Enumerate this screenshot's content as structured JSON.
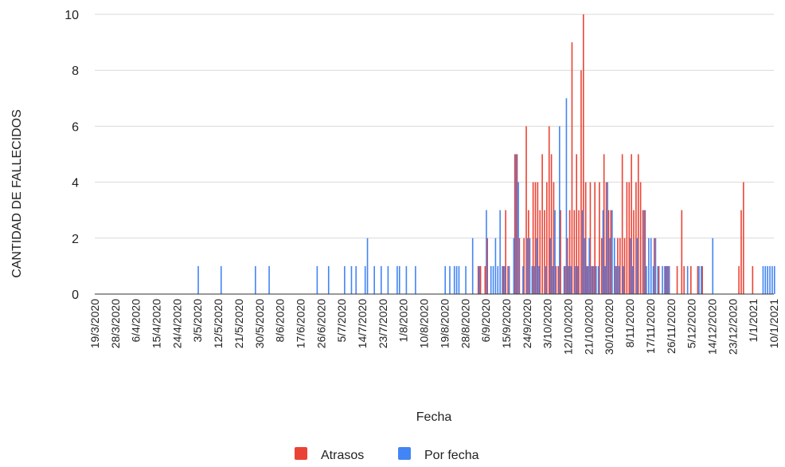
{
  "chart_data": {
    "type": "bar",
    "title": "",
    "xlabel": "Fecha",
    "ylabel": "CANTIDAD DE FALLECIDOS",
    "ylim": [
      0,
      10
    ],
    "yticks": [
      0,
      2,
      4,
      6,
      8,
      10
    ],
    "grid": true,
    "legend_position": "bottom",
    "x_range": [
      "19/3/2020",
      "10/1/2021"
    ],
    "tick_labels": [
      "19/3/2020",
      "28/3/2020",
      "6/4/2020",
      "15/4/2020",
      "24/4/2020",
      "3/5/2020",
      "12/5/2020",
      "21/5/2020",
      "30/5/2020",
      "8/6/2020",
      "17/6/2020",
      "26/6/2020",
      "5/7/2020",
      "14/7/2020",
      "23/7/2020",
      "1/8/2020",
      "10/8/2020",
      "19/8/2020",
      "28/8/2020",
      "6/9/2020",
      "15/9/2020",
      "24/9/2020",
      "3/10/2020",
      "12/10/2020",
      "21/10/2020",
      "30/10/2020",
      "8/11/2020",
      "17/11/2020",
      "26/11/2020",
      "5/12/2020",
      "14/12/2020",
      "23/12/2020",
      "1/1/2021",
      "10/1/2021"
    ],
    "series": [
      {
        "name": "Atrasos",
        "color": "#ea4335",
        "points": [
          {
            "x": "3/9/2020",
            "y": 1
          },
          {
            "x": "4/9/2020",
            "y": 1
          },
          {
            "x": "6/9/2020",
            "y": 1
          },
          {
            "x": "7/9/2020",
            "y": 2
          },
          {
            "x": "14/9/2020",
            "y": 1
          },
          {
            "x": "15/9/2020",
            "y": 3
          },
          {
            "x": "16/9/2020",
            "y": 1
          },
          {
            "x": "19/9/2020",
            "y": 5
          },
          {
            "x": "20/9/2020",
            "y": 5
          },
          {
            "x": "21/9/2020",
            "y": 2
          },
          {
            "x": "23/9/2020",
            "y": 2
          },
          {
            "x": "24/9/2020",
            "y": 6
          },
          {
            "x": "25/9/2020",
            "y": 3
          },
          {
            "x": "27/9/2020",
            "y": 4
          },
          {
            "x": "28/9/2020",
            "y": 4
          },
          {
            "x": "29/9/2020",
            "y": 4
          },
          {
            "x": "30/9/2020",
            "y": 3
          },
          {
            "x": "1/10/2020",
            "y": 5
          },
          {
            "x": "2/10/2020",
            "y": 3
          },
          {
            "x": "3/10/2020",
            "y": 4
          },
          {
            "x": "4/10/2020",
            "y": 6
          },
          {
            "x": "5/10/2020",
            "y": 5
          },
          {
            "x": "6/10/2020",
            "y": 4
          },
          {
            "x": "7/10/2020",
            "y": 1
          },
          {
            "x": "8/10/2020",
            "y": 1
          },
          {
            "x": "9/10/2020",
            "y": 3
          },
          {
            "x": "11/10/2020",
            "y": 1
          },
          {
            "x": "12/10/2020",
            "y": 2
          },
          {
            "x": "13/10/2020",
            "y": 3
          },
          {
            "x": "14/10/2020",
            "y": 9
          },
          {
            "x": "15/10/2020",
            "y": 3
          },
          {
            "x": "16/10/2020",
            "y": 5
          },
          {
            "x": "17/10/2020",
            "y": 3
          },
          {
            "x": "18/10/2020",
            "y": 8
          },
          {
            "x": "19/10/2020",
            "y": 10
          },
          {
            "x": "20/10/2020",
            "y": 4
          },
          {
            "x": "21/10/2020",
            "y": 1
          },
          {
            "x": "22/10/2020",
            "y": 4
          },
          {
            "x": "23/10/2020",
            "y": 1
          },
          {
            "x": "24/10/2020",
            "y": 4
          },
          {
            "x": "26/10/2020",
            "y": 4
          },
          {
            "x": "27/10/2020",
            "y": 2
          },
          {
            "x": "28/10/2020",
            "y": 5
          },
          {
            "x": "29/10/2020",
            "y": 4
          },
          {
            "x": "30/10/2020",
            "y": 3
          },
          {
            "x": "31/10/2020",
            "y": 3
          },
          {
            "x": "2/11/2020",
            "y": 1
          },
          {
            "x": "3/11/2020",
            "y": 2
          },
          {
            "x": "4/11/2020",
            "y": 2
          },
          {
            "x": "5/11/2020",
            "y": 5
          },
          {
            "x": "6/11/2020",
            "y": 2
          },
          {
            "x": "7/11/2020",
            "y": 4
          },
          {
            "x": "8/11/2020",
            "y": 4
          },
          {
            "x": "9/11/2020",
            "y": 5
          },
          {
            "x": "10/11/2020",
            "y": 3
          },
          {
            "x": "11/11/2020",
            "y": 4
          },
          {
            "x": "12/11/2020",
            "y": 5
          },
          {
            "x": "13/11/2020",
            "y": 4
          },
          {
            "x": "14/11/2020",
            "y": 3
          },
          {
            "x": "15/11/2020",
            "y": 3
          },
          {
            "x": "19/11/2020",
            "y": 2
          },
          {
            "x": "21/11/2020",
            "y": 1
          },
          {
            "x": "24/11/2020",
            "y": 1
          },
          {
            "x": "25/11/2020",
            "y": 1
          },
          {
            "x": "29/11/2020",
            "y": 1
          },
          {
            "x": "1/12/2020",
            "y": 3
          },
          {
            "x": "2/12/2020",
            "y": 1
          },
          {
            "x": "5/12/2020",
            "y": 1
          },
          {
            "x": "8/12/2020",
            "y": 1
          },
          {
            "x": "10/12/2020",
            "y": 1
          },
          {
            "x": "26/12/2020",
            "y": 1
          },
          {
            "x": "27/12/2020",
            "y": 3
          },
          {
            "x": "28/12/2020",
            "y": 4
          },
          {
            "x": "1/1/2021",
            "y": 1
          }
        ]
      },
      {
        "name": "Por fecha",
        "color": "#4285f4",
        "points": [
          {
            "x": "3/5/2020",
            "y": 1
          },
          {
            "x": "13/5/2020",
            "y": 1
          },
          {
            "x": "28/5/2020",
            "y": 1
          },
          {
            "x": "3/6/2020",
            "y": 1
          },
          {
            "x": "24/6/2020",
            "y": 1
          },
          {
            "x": "29/6/2020",
            "y": 1
          },
          {
            "x": "6/7/2020",
            "y": 1
          },
          {
            "x": "9/7/2020",
            "y": 1
          },
          {
            "x": "11/7/2020",
            "y": 1
          },
          {
            "x": "15/7/2020",
            "y": 1
          },
          {
            "x": "16/7/2020",
            "y": 2
          },
          {
            "x": "19/7/2020",
            "y": 1
          },
          {
            "x": "22/7/2020",
            "y": 1
          },
          {
            "x": "25/7/2020",
            "y": 1
          },
          {
            "x": "29/7/2020",
            "y": 1
          },
          {
            "x": "30/7/2020",
            "y": 1
          },
          {
            "x": "2/8/2020",
            "y": 1
          },
          {
            "x": "6/8/2020",
            "y": 1
          },
          {
            "x": "19/8/2020",
            "y": 1
          },
          {
            "x": "21/8/2020",
            "y": 1
          },
          {
            "x": "23/8/2020",
            "y": 1
          },
          {
            "x": "24/8/2020",
            "y": 1
          },
          {
            "x": "25/8/2020",
            "y": 1
          },
          {
            "x": "28/8/2020",
            "y": 1
          },
          {
            "x": "31/8/2020",
            "y": 2
          },
          {
            "x": "3/9/2020",
            "y": 1
          },
          {
            "x": "6/9/2020",
            "y": 3
          },
          {
            "x": "8/9/2020",
            "y": 1
          },
          {
            "x": "9/9/2020",
            "y": 1
          },
          {
            "x": "10/9/2020",
            "y": 2
          },
          {
            "x": "11/9/2020",
            "y": 1
          },
          {
            "x": "12/9/2020",
            "y": 3
          },
          {
            "x": "13/9/2020",
            "y": 1
          },
          {
            "x": "14/9/2020",
            "y": 1
          },
          {
            "x": "16/9/2020",
            "y": 1
          },
          {
            "x": "18/9/2020",
            "y": 2
          },
          {
            "x": "19/9/2020",
            "y": 5
          },
          {
            "x": "20/9/2020",
            "y": 4
          },
          {
            "x": "22/9/2020",
            "y": 1
          },
          {
            "x": "24/9/2020",
            "y": 2
          },
          {
            "x": "25/9/2020",
            "y": 2
          },
          {
            "x": "26/9/2020",
            "y": 1
          },
          {
            "x": "27/9/2020",
            "y": 1
          },
          {
            "x": "28/9/2020",
            "y": 2
          },
          {
            "x": "29/9/2020",
            "y": 1
          },
          {
            "x": "2/10/2020",
            "y": 1
          },
          {
            "x": "4/10/2020",
            "y": 2
          },
          {
            "x": "5/10/2020",
            "y": 1
          },
          {
            "x": "6/10/2020",
            "y": 3
          },
          {
            "x": "8/10/2020",
            "y": 6
          },
          {
            "x": "10/10/2020",
            "y": 1
          },
          {
            "x": "11/10/2020",
            "y": 7
          },
          {
            "x": "12/10/2020",
            "y": 1
          },
          {
            "x": "13/10/2020",
            "y": 1
          },
          {
            "x": "15/10/2020",
            "y": 1
          },
          {
            "x": "16/10/2020",
            "y": 1
          },
          {
            "x": "18/10/2020",
            "y": 3
          },
          {
            "x": "19/10/2020",
            "y": 2
          },
          {
            "x": "20/10/2020",
            "y": 1
          },
          {
            "x": "21/10/2020",
            "y": 2
          },
          {
            "x": "22/10/2020",
            "y": 1
          },
          {
            "x": "23/10/2020",
            "y": 1
          },
          {
            "x": "24/10/2020",
            "y": 1
          },
          {
            "x": "25/10/2020",
            "y": 1
          },
          {
            "x": "27/10/2020",
            "y": 3
          },
          {
            "x": "28/10/2020",
            "y": 1
          },
          {
            "x": "29/10/2020",
            "y": 4
          },
          {
            "x": "30/10/2020",
            "y": 2
          },
          {
            "x": "31/10/2020",
            "y": 3
          },
          {
            "x": "1/11/2020",
            "y": 2
          },
          {
            "x": "2/11/2020",
            "y": 1
          },
          {
            "x": "3/11/2020",
            "y": 1
          },
          {
            "x": "5/11/2020",
            "y": 1
          },
          {
            "x": "8/11/2020",
            "y": 2
          },
          {
            "x": "9/11/2020",
            "y": 1
          },
          {
            "x": "11/11/2020",
            "y": 2
          },
          {
            "x": "14/11/2020",
            "y": 3
          },
          {
            "x": "15/11/2020",
            "y": 1
          },
          {
            "x": "16/11/2020",
            "y": 2
          },
          {
            "x": "17/11/2020",
            "y": 2
          },
          {
            "x": "18/11/2020",
            "y": 1
          },
          {
            "x": "19/11/2020",
            "y": 2
          },
          {
            "x": "20/11/2020",
            "y": 1
          },
          {
            "x": "22/11/2020",
            "y": 1
          },
          {
            "x": "23/11/2020",
            "y": 1
          },
          {
            "x": "24/11/2020",
            "y": 1
          },
          {
            "x": "25/11/2020",
            "y": 1
          },
          {
            "x": "3/12/2020",
            "y": 1
          },
          {
            "x": "8/12/2020",
            "y": 1
          },
          {
            "x": "9/12/2020",
            "y": 1
          },
          {
            "x": "14/12/2020",
            "y": 2
          },
          {
            "x": "5/1/2021",
            "y": 1
          },
          {
            "x": "6/1/2021",
            "y": 1
          },
          {
            "x": "7/1/2021",
            "y": 1
          },
          {
            "x": "8/1/2021",
            "y": 1
          },
          {
            "x": "9/1/2021",
            "y": 1
          },
          {
            "x": "10/1/2021",
            "y": 1
          }
        ]
      }
    ]
  }
}
